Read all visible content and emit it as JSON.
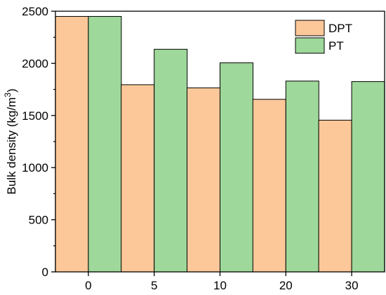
{
  "chart_data": {
    "type": "bar",
    "categories": [
      "0",
      "5",
      "10",
      "20",
      "30"
    ],
    "series": [
      {
        "name": "DPT",
        "values": [
          2450,
          1795,
          1765,
          1655,
          1455
        ]
      },
      {
        "name": "PT",
        "values": [
          2450,
          2135,
          2005,
          1830,
          1825
        ]
      }
    ],
    "title": "",
    "xlabel": "",
    "ylabel": "Bulk density (kg/m³)",
    "ylim": [
      0,
      2500
    ],
    "yticks": [
      "0",
      "500",
      "1000",
      "1500",
      "2000",
      "2500"
    ],
    "legend_position": "top-right",
    "grid": false,
    "colors": {
      "DPT": "#fcc899",
      "PT": "#9ed89a",
      "edge": "#000000"
    }
  }
}
